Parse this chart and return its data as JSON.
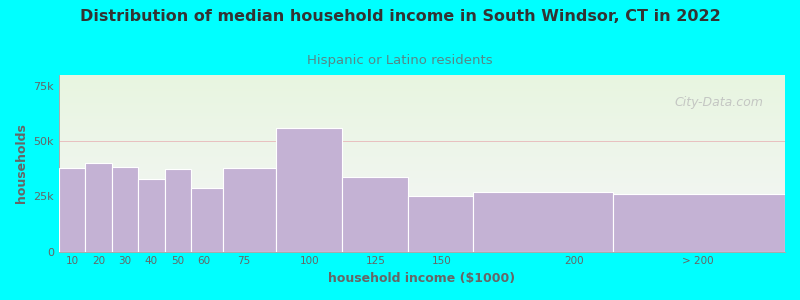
{
  "title": "Distribution of median household income in South Windsor, CT in 2022",
  "subtitle": "Hispanic or Latino residents",
  "xlabel": "household income ($1000)",
  "ylabel": "households",
  "background_color": "#00FFFF",
  "plot_bg_top": "#e8f5e0",
  "plot_bg_bottom": "#f5f5f8",
  "bar_color": "#c4b2d4",
  "bar_edge_color": "#ffffff",
  "title_color": "#333333",
  "subtitle_color": "#558888",
  "axis_label_color": "#666666",
  "tick_label_color": "#666666",
  "categories": [
    "10",
    "20",
    "30",
    "40",
    "50",
    "60",
    "75",
    "100",
    "125",
    "150",
    "200",
    "> 200"
  ],
  "values": [
    38000,
    40000,
    38500,
    33000,
    37500,
    29000,
    38000,
    56000,
    34000,
    25000,
    27000,
    26000
  ],
  "bar_lefts": [
    5,
    15,
    25,
    35,
    45,
    55,
    67,
    87,
    112,
    137,
    162,
    215
  ],
  "bar_rights": [
    15,
    25,
    35,
    45,
    55,
    67,
    87,
    112,
    137,
    162,
    215,
    280
  ],
  "xlim": [
    5,
    280
  ],
  "ylim": [
    0,
    80000
  ],
  "yticks": [
    0,
    25000,
    50000,
    75000
  ],
  "xtick_positions": [
    10,
    20,
    30,
    40,
    50,
    60,
    75,
    100,
    125,
    150,
    200,
    247
  ],
  "watermark": "City-Data.com"
}
